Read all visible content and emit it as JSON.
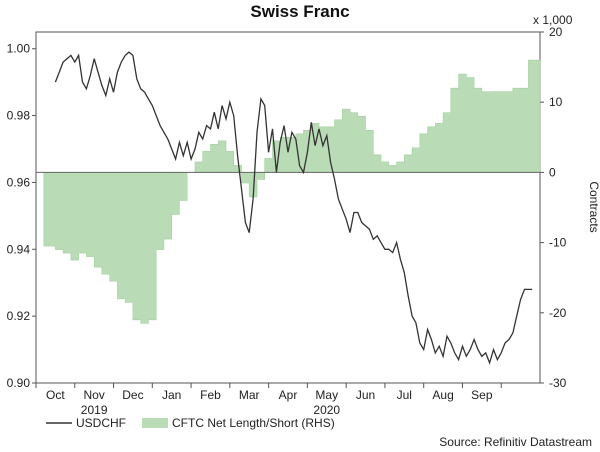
{
  "chart_data": {
    "type": "line",
    "title": "Swiss Franc",
    "x_labels": [
      "Oct",
      "Nov",
      "Dec",
      "Jan",
      "Feb",
      "Mar",
      "Apr",
      "May",
      "Jun",
      "Jul",
      "Aug",
      "Sep"
    ],
    "year_labels": [
      {
        "label": "2019",
        "month": "Nov"
      },
      {
        "label": "2020",
        "month": "May"
      }
    ],
    "y_left": {
      "ticks": [
        "0.90",
        "0.92",
        "0.94",
        "0.96",
        "0.98",
        "1.00"
      ],
      "ylim": [
        0.9,
        1.005
      ]
    },
    "y_right": {
      "ticks": [
        "-30",
        "-20",
        "-10",
        "0",
        "10",
        "20"
      ],
      "ylim": [
        -30,
        20
      ],
      "label": "Contracts",
      "multiplier": "x 1,000"
    },
    "legend_placement": "bottom-left",
    "source": "Source: Refinitiv Datastream",
    "series": [
      {
        "name": "USDCHF",
        "axis": "left",
        "color": "#333333",
        "x": [
          0.0,
          0.1,
          0.2,
          0.3,
          0.4,
          0.5,
          0.6,
          0.7,
          0.8,
          0.9,
          1.0,
          1.1,
          1.2,
          1.3,
          1.4,
          1.5,
          1.6,
          1.7,
          1.8,
          1.9,
          2.0,
          2.1,
          2.2,
          2.3,
          2.4,
          2.5,
          2.6,
          2.7,
          2.8,
          2.9,
          3.0,
          3.1,
          3.2,
          3.3,
          3.4,
          3.5,
          3.6,
          3.7,
          3.8,
          3.9,
          4.0,
          4.1,
          4.2,
          4.3,
          4.4,
          4.5,
          4.6,
          4.7,
          4.8,
          4.9,
          5.0,
          5.1,
          5.2,
          5.3,
          5.4,
          5.5,
          5.6,
          5.7,
          5.8,
          5.9,
          6.0,
          6.1,
          6.2,
          6.3,
          6.4,
          6.5,
          6.6,
          6.7,
          6.8,
          6.9,
          7.0,
          7.1,
          7.2,
          7.3,
          7.4,
          7.5,
          7.6,
          7.7,
          7.8,
          7.9,
          8.0,
          8.1,
          8.2,
          8.3,
          8.4,
          8.5,
          8.6,
          8.7,
          8.8,
          8.9,
          9.0,
          9.1,
          9.2,
          9.3,
          9.4,
          9.5,
          9.6,
          9.7,
          9.8,
          9.9,
          10.0,
          10.1,
          10.2,
          10.3,
          10.4,
          10.5,
          10.6,
          10.7,
          10.8,
          10.9,
          11.0,
          11.1,
          11.2,
          11.3,
          11.4,
          11.5,
          11.6,
          11.7,
          11.8,
          11.9,
          12.0,
          12.1,
          12.2,
          12.3
        ],
        "values": [
          0.99,
          0.993,
          0.996,
          0.997,
          0.998,
          0.996,
          0.998,
          0.99,
          0.988,
          0.992,
          0.997,
          0.993,
          0.989,
          0.986,
          0.991,
          0.987,
          0.993,
          0.996,
          0.998,
          0.999,
          0.998,
          0.991,
          0.988,
          0.987,
          0.985,
          0.983,
          0.98,
          0.977,
          0.975,
          0.973,
          0.97,
          0.967,
          0.972,
          0.968,
          0.972,
          0.967,
          0.97,
          0.975,
          0.973,
          0.977,
          0.976,
          0.981,
          0.976,
          0.983,
          0.979,
          0.984,
          0.98,
          0.968,
          0.958,
          0.948,
          0.945,
          0.955,
          0.975,
          0.985,
          0.983,
          0.969,
          0.976,
          0.963,
          0.972,
          0.977,
          0.969,
          0.975,
          0.973,
          0.965,
          0.963,
          0.969,
          0.978,
          0.971,
          0.976,
          0.971,
          0.974,
          0.966,
          0.961,
          0.955,
          0.952,
          0.949,
          0.945,
          0.951,
          0.951,
          0.948,
          0.947,
          0.946,
          0.943,
          0.944,
          0.942,
          0.94,
          0.94,
          0.939,
          0.942,
          0.937,
          0.933,
          0.926,
          0.92,
          0.918,
          0.912,
          0.91,
          0.916,
          0.913,
          0.909,
          0.911,
          0.908,
          0.914,
          0.912,
          0.909,
          0.907,
          0.911,
          0.908,
          0.91,
          0.913,
          0.91,
          0.908,
          0.909,
          0.906,
          0.91,
          0.907,
          0.909,
          0.912,
          0.913,
          0.915,
          0.92,
          0.925,
          0.928,
          0.928,
          0.928
        ]
      },
      {
        "name": "CFTC Net Length/Short (RHS)",
        "axis": "right",
        "type": "area",
        "color": "#b9dcb6",
        "x": [
          -0.3,
          0.0,
          0.2,
          0.4,
          0.6,
          0.8,
          1.0,
          1.2,
          1.4,
          1.6,
          1.8,
          2.0,
          2.2,
          2.4,
          2.6,
          2.8,
          3.0,
          3.2,
          3.4,
          3.6,
          3.8,
          4.0,
          4.2,
          4.4,
          4.6,
          4.8,
          5.0,
          5.2,
          5.4,
          5.6,
          5.8,
          6.0,
          6.2,
          6.4,
          6.6,
          6.8,
          7.0,
          7.2,
          7.4,
          7.6,
          7.8,
          8.0,
          8.2,
          8.4,
          8.6,
          8.8,
          9.0,
          9.2,
          9.4,
          9.6,
          9.8,
          10.0,
          10.2,
          10.4,
          10.6,
          10.8,
          11.0,
          11.2,
          11.4,
          11.6,
          11.8,
          12.0,
          12.2,
          12.4
        ],
        "values": [
          -10.5,
          -11.0,
          -11.5,
          -12.5,
          -11.5,
          -12.0,
          -13.5,
          -14.5,
          -15.5,
          -18.0,
          -18.5,
          -21.0,
          -21.5,
          -21.0,
          -11.0,
          -9.5,
          -6.0,
          -4.0,
          0.0,
          1.5,
          3.0,
          4.0,
          4.5,
          3.0,
          1.0,
          -1.5,
          -3.5,
          -1.0,
          2.0,
          4.5,
          5.0,
          5.0,
          5.5,
          6.0,
          7.0,
          6.5,
          6.5,
          7.5,
          9.0,
          8.5,
          8.0,
          6.0,
          2.5,
          1.5,
          1.0,
          1.5,
          2.5,
          3.5,
          5.5,
          6.5,
          7.0,
          8.5,
          12.0,
          14.0,
          13.5,
          12.0,
          11.5,
          11.5,
          11.5,
          11.5,
          12.0,
          12.0,
          16.0,
          16.0
        ]
      }
    ]
  }
}
